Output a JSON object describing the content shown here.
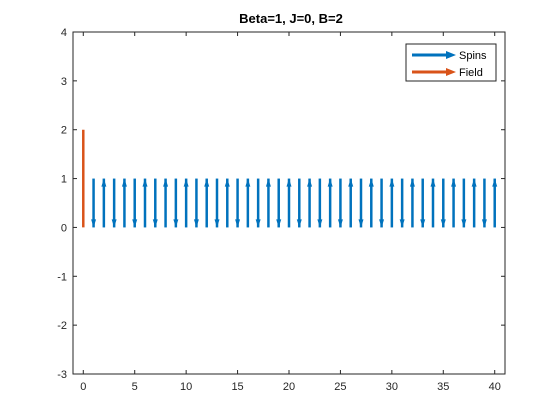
{
  "chart_data": {
    "type": "quiver",
    "title": "Beta=1, J=0, B=2",
    "xlabel": "",
    "ylabel": "",
    "xlim": [
      -1,
      41
    ],
    "ylim": [
      -3,
      4
    ],
    "x_ticks": [
      0,
      5,
      10,
      15,
      20,
      25,
      30,
      35,
      40
    ],
    "y_ticks": [
      -3,
      -2,
      -1,
      0,
      1,
      2,
      3,
      4
    ],
    "grid": false,
    "legend_position": "top-right",
    "series": [
      {
        "name": "Spins",
        "color": "#0072BD",
        "x": [
          1,
          2,
          3,
          4,
          5,
          6,
          7,
          8,
          9,
          10,
          11,
          12,
          13,
          14,
          15,
          16,
          17,
          18,
          19,
          20,
          21,
          22,
          23,
          24,
          25,
          26,
          27,
          28,
          29,
          30,
          31,
          32,
          33,
          34,
          35,
          36,
          37,
          38,
          39,
          40
        ],
        "base_y": [
          1,
          0,
          1,
          0,
          1,
          0,
          1,
          0,
          1,
          0,
          1,
          0,
          1,
          0,
          1,
          0,
          1,
          0,
          1,
          0,
          1,
          0,
          1,
          0,
          1,
          0,
          1,
          0,
          1,
          0,
          1,
          0,
          1,
          0,
          1,
          0,
          1,
          0,
          1,
          0
        ],
        "dy": [
          -1,
          1,
          -1,
          1,
          -1,
          1,
          -1,
          1,
          -1,
          1,
          -1,
          1,
          -1,
          1,
          -1,
          1,
          -1,
          1,
          -1,
          1,
          -1,
          1,
          -1,
          1,
          -1,
          1,
          -1,
          1,
          -1,
          1,
          -1,
          1,
          -1,
          1,
          -1,
          1,
          -1,
          1,
          -1,
          1
        ]
      },
      {
        "name": "Field",
        "color": "#D95319",
        "x": [
          0
        ],
        "base_y": [
          0
        ],
        "dy": [
          2
        ]
      }
    ]
  }
}
